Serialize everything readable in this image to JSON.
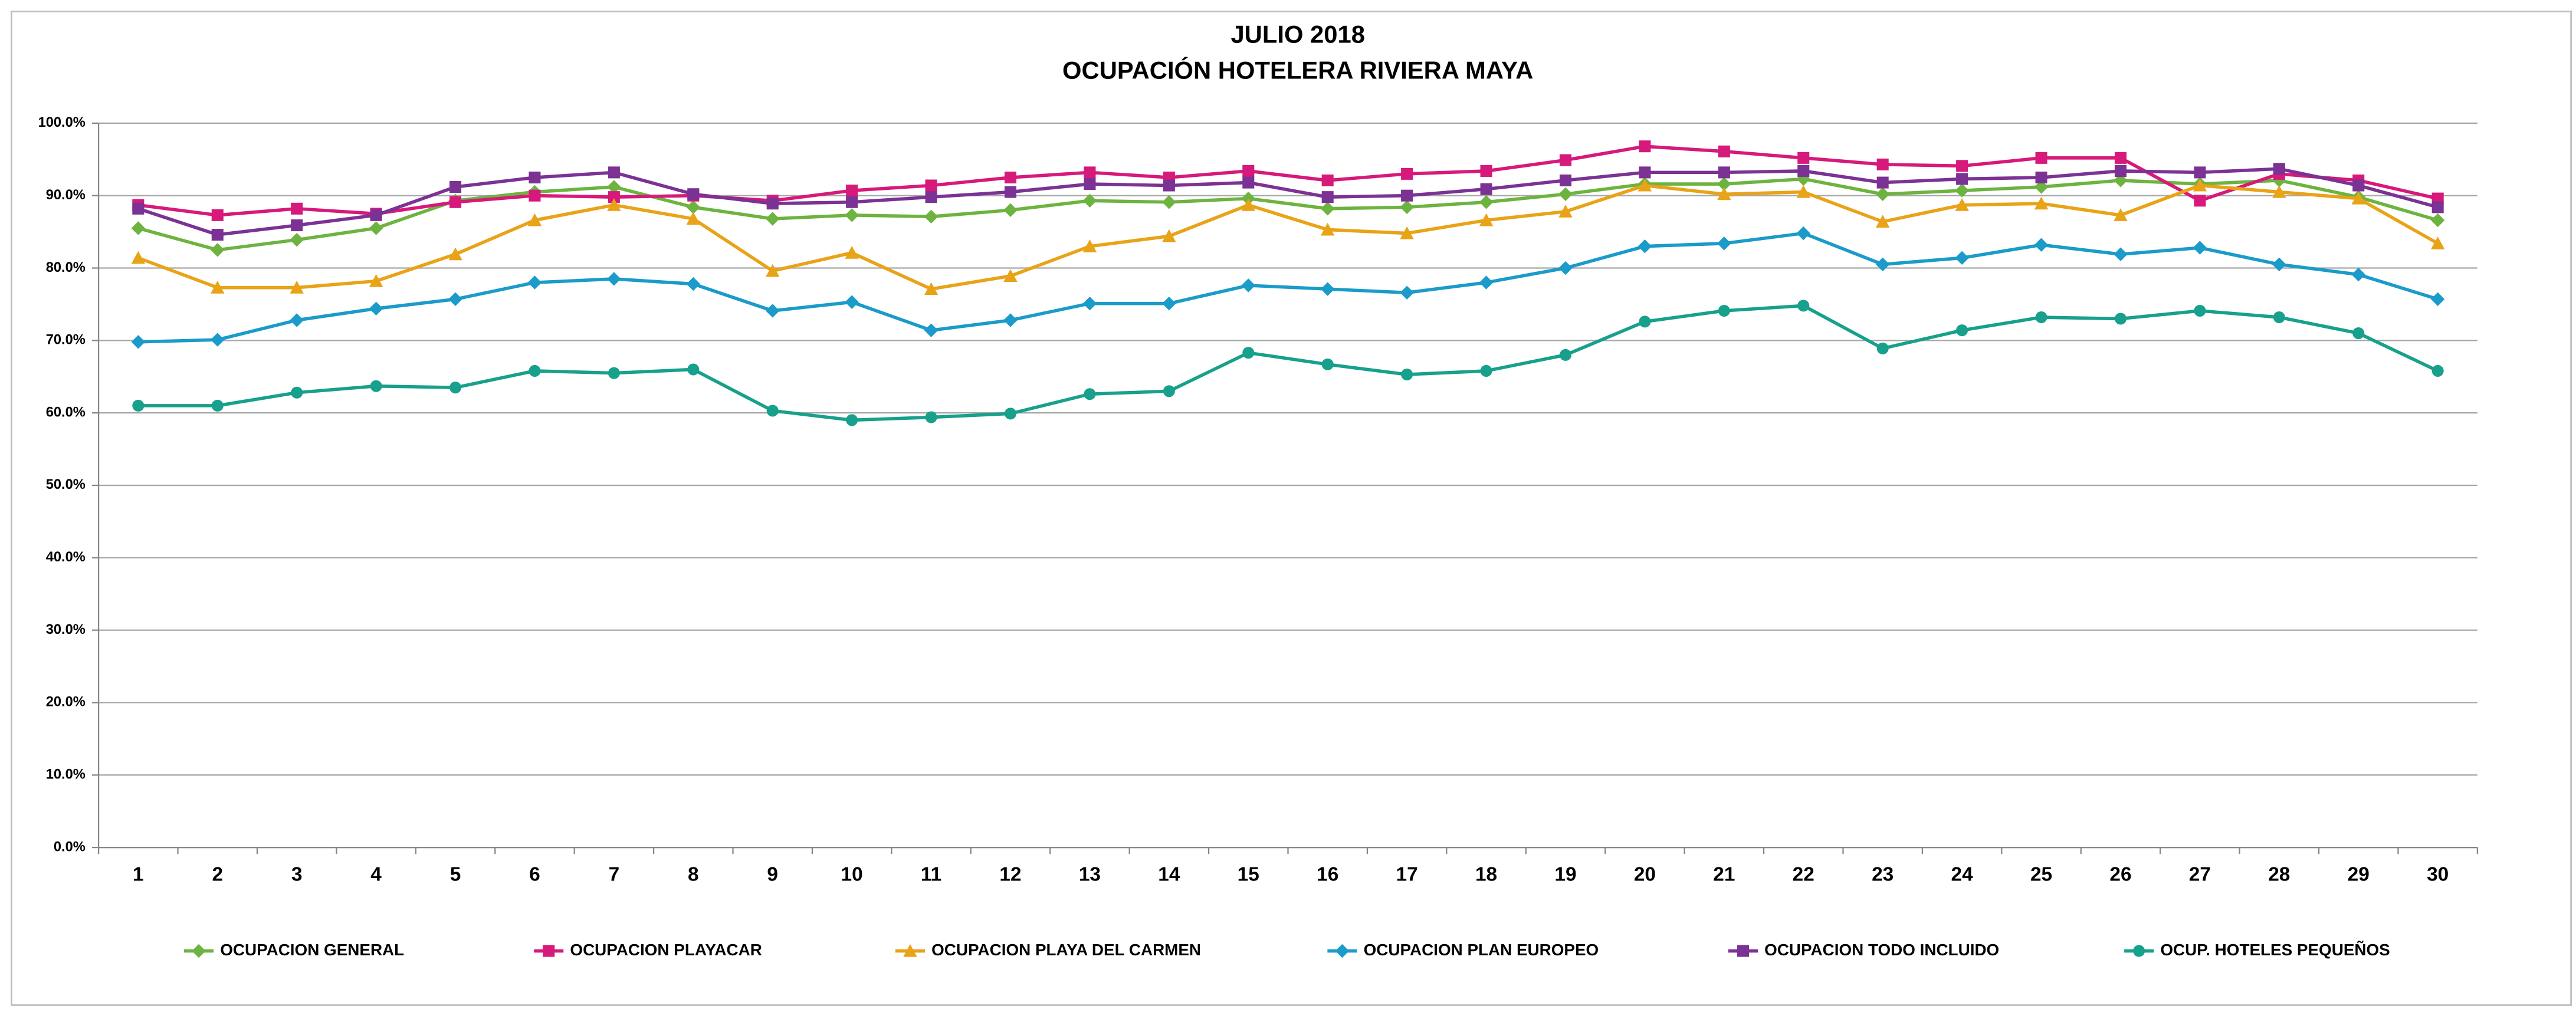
{
  "chart_data": {
    "type": "line",
    "title": "JULIO 2018",
    "subtitle": "OCUPACIÓN HOTELERA RIVIERA MAYA",
    "categories": [
      "1",
      "2",
      "3",
      "4",
      "5",
      "6",
      "7",
      "8",
      "9",
      "10",
      "11",
      "12",
      "13",
      "14",
      "15",
      "16",
      "17",
      "18",
      "19",
      "20",
      "21",
      "22",
      "23",
      "24",
      "25",
      "26",
      "27",
      "28",
      "29",
      "30"
    ],
    "ylim": [
      0,
      100
    ],
    "yticks": [
      {
        "value": 0,
        "label": "0.0%"
      },
      {
        "value": 10,
        "label": "10.0%"
      },
      {
        "value": 20,
        "label": "20.0%"
      },
      {
        "value": 30,
        "label": "30.0%"
      },
      {
        "value": 40,
        "label": "40.0%"
      },
      {
        "value": 50,
        "label": "50.0%"
      },
      {
        "value": 60,
        "label": "60.0%"
      },
      {
        "value": 70,
        "label": "70.0%"
      },
      {
        "value": 80,
        "label": "80.0%"
      },
      {
        "value": 90,
        "label": "90.0%"
      },
      {
        "value": 100,
        "label": "100.0%"
      }
    ],
    "grid": true,
    "legend": "bottom",
    "series": [
      {
        "name": "OCUPACION GENERAL",
        "color": "#6db33f",
        "marker": "diamond",
        "values": [
          85.5,
          82.5,
          83.9,
          85.5,
          89.3,
          90.5,
          91.2,
          88.4,
          86.8,
          87.3,
          87.1,
          88.0,
          89.3,
          89.1,
          89.6,
          88.2,
          88.4,
          89.1,
          90.2,
          91.6,
          91.6,
          92.3,
          90.2,
          90.7,
          91.2,
          92.1,
          91.6,
          92.1,
          89.8,
          86.6
        ]
      },
      {
        "name": "OCUPACION PLAYACAR",
        "color": "#d6197a",
        "marker": "square",
        "values": [
          88.7,
          87.3,
          88.2,
          87.5,
          89.1,
          90.0,
          89.8,
          90.0,
          89.3,
          90.7,
          91.4,
          92.5,
          93.2,
          92.5,
          93.4,
          92.1,
          93.0,
          93.4,
          94.9,
          96.8,
          96.1,
          95.2,
          94.3,
          94.1,
          95.2,
          95.2,
          89.3,
          93.0,
          92.1,
          89.6
        ]
      },
      {
        "name": "OCUPACION PLAYA DEL CARMEN",
        "color": "#e8a317",
        "marker": "triangle",
        "values": [
          81.4,
          77.3,
          77.3,
          78.2,
          81.9,
          86.6,
          88.7,
          86.8,
          79.6,
          82.1,
          77.1,
          78.9,
          83.0,
          84.4,
          88.7,
          85.3,
          84.8,
          86.6,
          87.8,
          91.4,
          90.2,
          90.5,
          86.4,
          88.7,
          88.9,
          87.3,
          91.4,
          90.5,
          89.6,
          83.4
        ]
      },
      {
        "name": "OCUPACION PLAN EUROPEO",
        "color": "#1a9bc9",
        "marker": "diamond",
        "values": [
          69.8,
          70.1,
          72.8,
          74.4,
          75.7,
          78.0,
          78.5,
          77.8,
          74.1,
          75.3,
          71.4,
          72.8,
          75.1,
          75.1,
          77.6,
          77.1,
          76.6,
          78.0,
          80.0,
          83.0,
          83.4,
          84.8,
          80.5,
          81.4,
          83.2,
          81.9,
          82.8,
          80.5,
          79.1,
          75.7
        ]
      },
      {
        "name": "OCUPACION TODO INCLUIDO",
        "color": "#7b3294",
        "marker": "square",
        "values": [
          88.2,
          84.6,
          85.9,
          87.3,
          91.2,
          92.5,
          93.2,
          90.2,
          88.9,
          89.1,
          89.8,
          90.5,
          91.6,
          91.4,
          91.8,
          89.8,
          90.0,
          90.9,
          92.1,
          93.2,
          93.2,
          93.4,
          91.8,
          92.3,
          92.5,
          93.4,
          93.2,
          93.7,
          91.4,
          88.4
        ]
      },
      {
        "name": "OCUP. HOTELES PEQUEÑOS",
        "color": "#17a08c",
        "marker": "circle",
        "values": [
          61.0,
          61.0,
          62.8,
          63.7,
          63.5,
          65.8,
          65.5,
          66.0,
          60.3,
          59.0,
          59.4,
          59.9,
          62.6,
          63.0,
          68.3,
          66.7,
          65.3,
          65.8,
          68.0,
          72.6,
          74.1,
          74.8,
          68.9,
          71.4,
          73.2,
          73.0,
          74.1,
          73.2,
          71.0,
          65.8
        ]
      }
    ]
  }
}
